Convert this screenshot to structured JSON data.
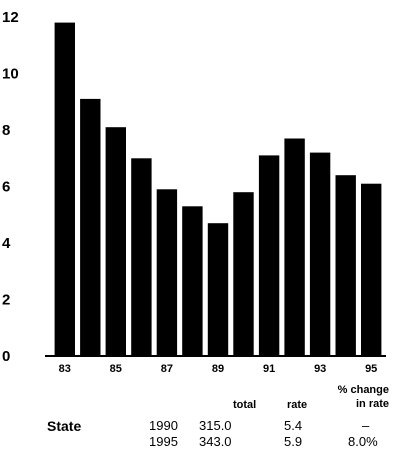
{
  "chart_data": {
    "type": "bar",
    "categories": [
      "83",
      "84",
      "85",
      "86",
      "87",
      "88",
      "89",
      "90",
      "91",
      "92",
      "93",
      "94",
      "95"
    ],
    "values": [
      11.8,
      9.1,
      8.1,
      7.0,
      5.9,
      5.3,
      4.7,
      5.8,
      7.1,
      7.7,
      7.2,
      6.4,
      6.1
    ],
    "ylim": [
      0,
      12
    ],
    "yticks": [
      "0",
      "2",
      "4",
      "6",
      "8",
      "10",
      "12"
    ],
    "xtick_labels": [
      "83",
      "85",
      "87",
      "89",
      "91",
      "93",
      "95"
    ],
    "bar_color": "#000000",
    "grid": false
  },
  "table": {
    "headers": {
      "total": "total",
      "rate": "rate",
      "pct_line1": "% change",
      "pct_line2": "in rate"
    },
    "label": "State",
    "rows": [
      {
        "year": "1990",
        "total": "315.0",
        "rate": "5.4",
        "pct": "–"
      },
      {
        "year": "1995",
        "total": "343.0",
        "rate": "5.9",
        "pct": "8.0%"
      }
    ]
  }
}
